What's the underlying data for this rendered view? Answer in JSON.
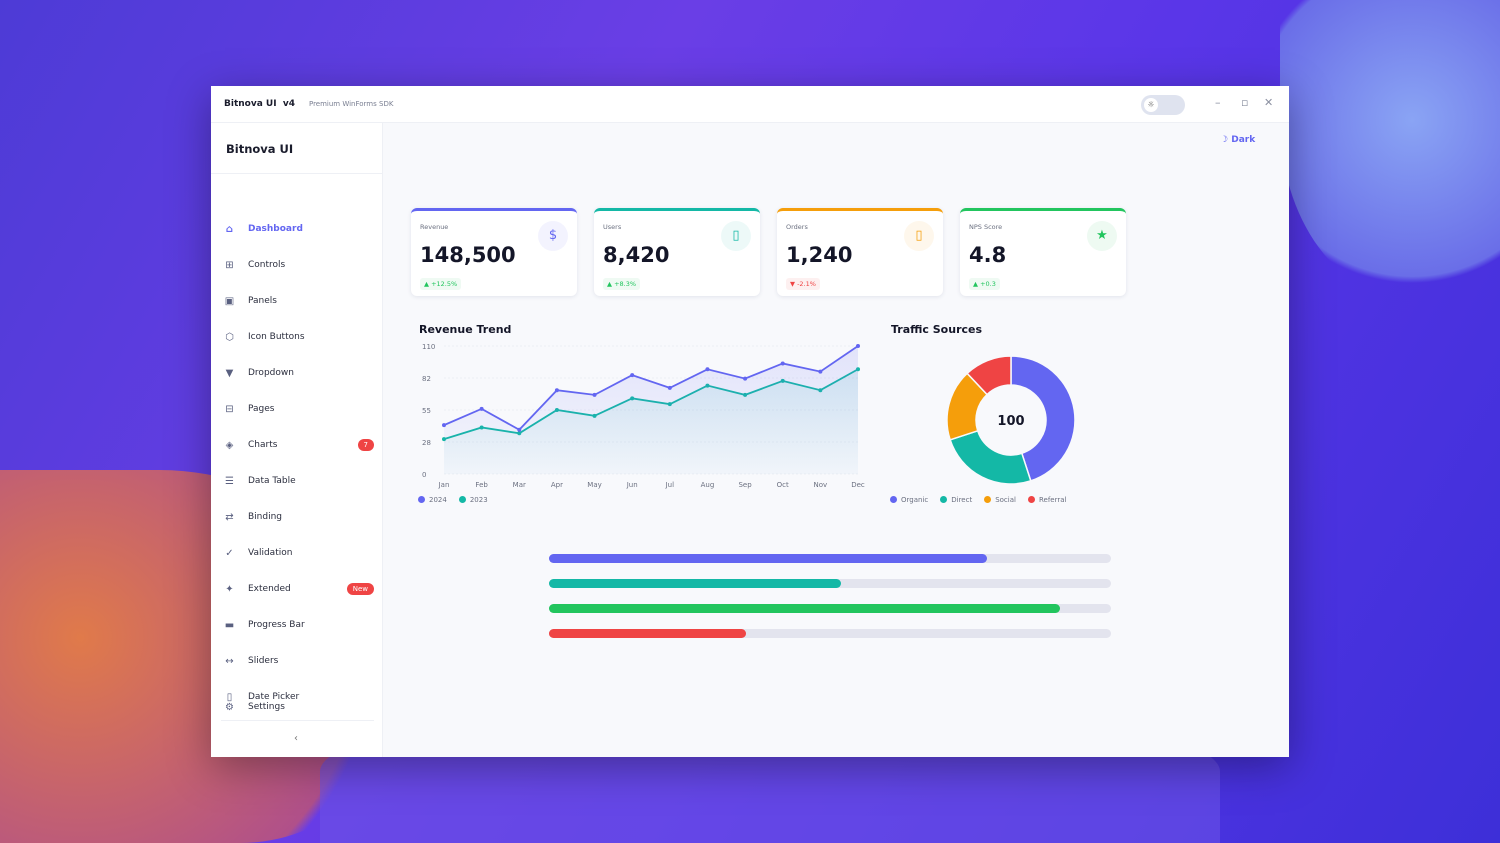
{
  "window": {
    "title": "Bitnova UI  v4",
    "subtitle": "Premium WinForms SDK",
    "controls": {
      "minimize": "–",
      "maximize": "▫",
      "close": "✕"
    }
  },
  "sidebar": {
    "brand": "Bitnova UI",
    "items": [
      {
        "label": "Dashboard",
        "icon": "home-icon",
        "glyph": "⌂",
        "active": true
      },
      {
        "label": "Controls",
        "icon": "grid-icon",
        "glyph": "⊞"
      },
      {
        "label": "Panels",
        "icon": "panel-icon",
        "glyph": "▣"
      },
      {
        "label": "Icon Buttons",
        "icon": "hexagon-icon",
        "glyph": "⬡"
      },
      {
        "label": "Dropdown",
        "icon": "caret-down-icon",
        "glyph": "▼"
      },
      {
        "label": "Pages",
        "icon": "pages-icon",
        "glyph": "⊟"
      },
      {
        "label": "Charts",
        "icon": "chart-icon",
        "glyph": "◈",
        "badge": "7"
      },
      {
        "label": "Data Table",
        "icon": "list-icon",
        "glyph": "☰"
      },
      {
        "label": "Binding",
        "icon": "swap-icon",
        "glyph": "⇄"
      },
      {
        "label": "Validation",
        "icon": "check-icon",
        "glyph": "✓"
      },
      {
        "label": "Extended",
        "icon": "sparkle-icon",
        "glyph": "✦",
        "badge": "New"
      },
      {
        "label": "Progress Bar",
        "icon": "progress-icon",
        "glyph": "▬"
      },
      {
        "label": "Sliders",
        "icon": "slider-icon",
        "glyph": "↔"
      },
      {
        "label": "Date Picker",
        "icon": "calendar-icon",
        "glyph": "▯"
      }
    ],
    "settings": {
      "label": "Settings",
      "glyph": "⚙"
    },
    "collapse": "‹"
  },
  "theme_toggle": {
    "label": "Dark",
    "glyph": "☽",
    "sun": "☼"
  },
  "kpis": [
    {
      "label": "Revenue",
      "value": "148,500",
      "change": "▲ +12.5%",
      "dir": "up",
      "color": "#6366f1",
      "glyph": "$",
      "icon": "dollar-icon"
    },
    {
      "label": "Users",
      "value": "8,420",
      "change": "▲ +8.3%",
      "dir": "up",
      "color": "#14b8a6",
      "glyph": "▯",
      "icon": "users-icon"
    },
    {
      "label": "Orders",
      "value": "1,240",
      "change": "▼ -2.1%",
      "dir": "down",
      "color": "#f59e0b",
      "glyph": "▯",
      "icon": "orders-icon"
    },
    {
      "label": "NPS Score",
      "value": "4.8",
      "change": "▲ +0.3",
      "dir": "up",
      "color": "#22c55e",
      "glyph": "★",
      "icon": "star-icon"
    }
  ],
  "chart_data": [
    {
      "type": "line",
      "title": "Revenue Trend",
      "categories": [
        "Jan",
        "Feb",
        "Mar",
        "Apr",
        "May",
        "Jun",
        "Jul",
        "Aug",
        "Sep",
        "Oct",
        "Nov",
        "Dec"
      ],
      "series": [
        {
          "name": "2024",
          "color": "#6366f1",
          "values": [
            42,
            56,
            38,
            72,
            68,
            85,
            74,
            90,
            82,
            95,
            88,
            110
          ]
        },
        {
          "name": "2023",
          "color": "#14b8a6",
          "values": [
            30,
            40,
            35,
            55,
            50,
            65,
            60,
            76,
            68,
            80,
            72,
            90
          ]
        }
      ],
      "yticks": [
        "110",
        "82",
        "55",
        "28",
        "0"
      ],
      "ylim": [
        0,
        110
      ],
      "legend": "bottom-left"
    },
    {
      "type": "pie",
      "title": "Traffic Sources",
      "center_label": "100",
      "slices": [
        {
          "name": "Organic",
          "value": 45,
          "color": "#6366f1"
        },
        {
          "name": "Direct",
          "value": 25,
          "color": "#14b8a6"
        },
        {
          "name": "Social",
          "value": 18,
          "color": "#f59e0b"
        },
        {
          "name": "Referral",
          "value": 12,
          "color": "#ef4444"
        }
      ],
      "legend": "bottom"
    }
  ],
  "progress": [
    {
      "value": 78,
      "color": "#6366f1"
    },
    {
      "value": 52,
      "color": "#14b8a6"
    },
    {
      "value": 91,
      "color": "#22c55e"
    },
    {
      "value": 35,
      "color": "#ef4444"
    }
  ]
}
